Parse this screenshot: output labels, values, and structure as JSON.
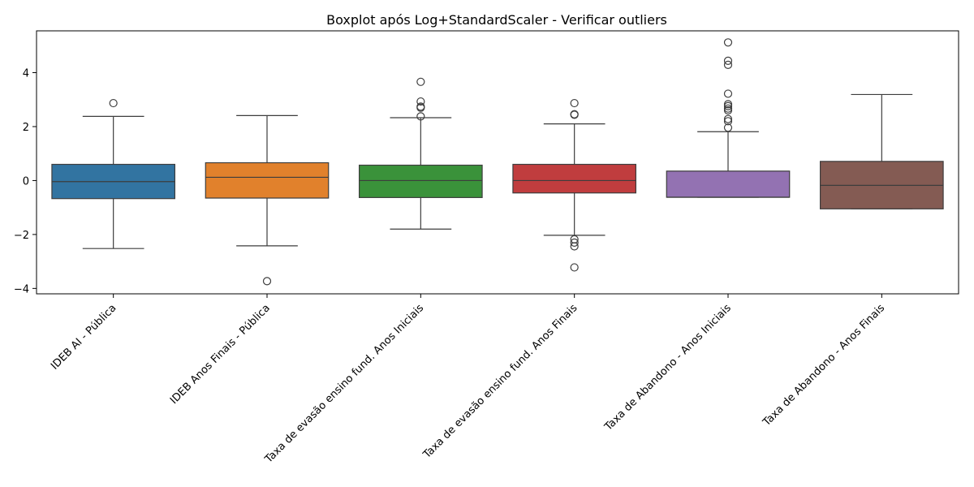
{
  "chart_data": {
    "type": "boxplot",
    "title": "Boxplot após Log+StandardScaler - Verificar outliers",
    "xlabel": "",
    "ylabel": "",
    "ylim": [
      -4.2,
      5.55
    ],
    "yticks": [
      -4,
      -2,
      0,
      2,
      4
    ],
    "grid": false,
    "categories": [
      "IDEB AI - Pública",
      "IDEB Anos Finais - Pública",
      "Taxa de evasão ensino fund. Anos Iniciais",
      "Taxa de evasão ensino fund. Anos Finais",
      "Taxa de Abandono - Anos Iniciais",
      "Taxa de Abandono - Anos Finais"
    ],
    "series": [
      {
        "color": "#3274a1",
        "whisker_low": -2.52,
        "q1": -0.67,
        "median": -0.04,
        "q3": 0.6,
        "whisker_high": 2.38,
        "outliers": [
          2.87
        ]
      },
      {
        "color": "#e1812c",
        "whisker_low": -2.42,
        "q1": -0.65,
        "median": 0.12,
        "q3": 0.66,
        "whisker_high": 2.41,
        "outliers": [
          -3.73
        ]
      },
      {
        "color": "#3a923a",
        "whisker_low": -1.8,
        "q1": -0.63,
        "median": 0.0,
        "q3": 0.57,
        "whisker_high": 2.33,
        "outliers": [
          2.38,
          2.7,
          2.74,
          2.93,
          3.66
        ]
      },
      {
        "color": "#c03d3e",
        "whisker_low": -2.03,
        "q1": -0.46,
        "median": 0.0,
        "q3": 0.6,
        "whisker_high": 2.1,
        "outliers": [
          -3.22,
          -2.44,
          -2.3,
          -2.18,
          2.44,
          2.46,
          2.87
        ]
      },
      {
        "color": "#9372b2",
        "whisker_low": -0.62,
        "q1": -0.62,
        "median": -0.62,
        "q3": 0.35,
        "whisker_high": 1.81,
        "outliers": [
          1.96,
          2.2,
          2.28,
          2.6,
          2.67,
          2.76,
          2.83,
          3.22,
          4.29,
          4.44,
          5.12
        ]
      },
      {
        "color": "#845b53",
        "whisker_low": -1.05,
        "q1": -1.05,
        "median": -0.18,
        "q3": 0.71,
        "whisker_high": 3.19,
        "outliers": []
      }
    ]
  }
}
